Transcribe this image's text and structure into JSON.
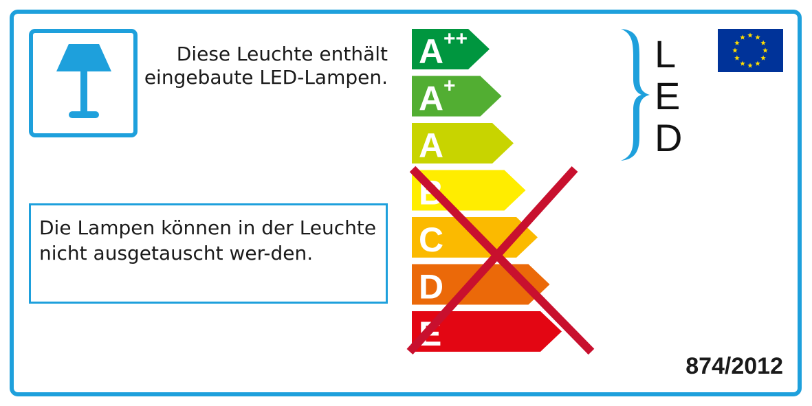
{
  "intro_text": "Diese Leuchte enthält eingebaute LED-Lampen.",
  "note_text": "Die Lampen können in der Leuchte nicht ausgetauscht wer-den.",
  "led_letters": [
    "L",
    "E",
    "D"
  ],
  "regulation": "874/2012",
  "colors": {
    "frame": "#1ea0dc",
    "cross": "#c8102e",
    "eu_blue": "#003399",
    "eu_star": "#ffdd00"
  },
  "energy_classes": [
    {
      "letter": "A",
      "sup": "++",
      "color": "#00963f",
      "crossed": false
    },
    {
      "letter": "A",
      "sup": "+",
      "color": "#52ae32",
      "crossed": false
    },
    {
      "letter": "A",
      "sup": "",
      "color": "#c8d400",
      "crossed": false
    },
    {
      "letter": "B",
      "sup": "",
      "color": "#ffed00",
      "crossed": true
    },
    {
      "letter": "C",
      "sup": "",
      "color": "#fbba00",
      "crossed": true
    },
    {
      "letter": "D",
      "sup": "",
      "color": "#eb6909",
      "crossed": true
    },
    {
      "letter": "E",
      "sup": "",
      "color": "#e30613",
      "crossed": true
    }
  ],
  "icons": {
    "lamp": "table-lamp-icon",
    "eu_flag": "eu-flag-icon",
    "brace": "curly-brace-icon"
  }
}
